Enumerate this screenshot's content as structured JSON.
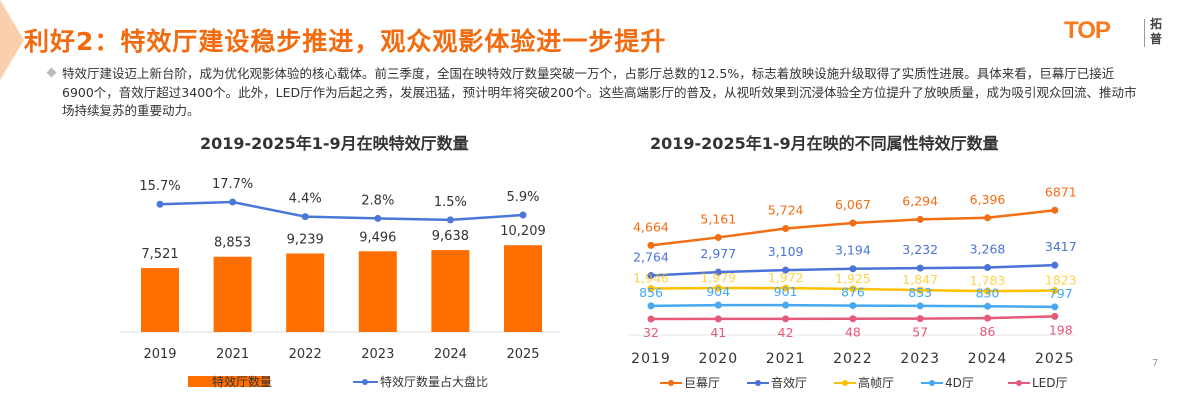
{
  "slide": {
    "title": "利好2：特效厅建设稳步推进，观众观影体验进一步提升",
    "logo_text": "TOP",
    "logo_cn": "拓普",
    "body": "特效厅建设迈上新台阶，成为优化观影体验的核心载体。前三季度，全国在映特效厅数量突破一万个，占影厅总数的12.5%，标志着放映设施升级取得了实质性进展。具体来看，巨幕厅已接近6900个，音效厅超过3400个。此外，LED厅作为后起之秀，发展迅猛，预计明年将突破200个。这些高端影厅的普及，从视听效果到沉浸体验全方位提升了放映质量，成为吸引观众回流、推动市场持续复苏的重要动力。",
    "page_number": "7",
    "accent": "#f26b0f"
  },
  "chart_data": [
    {
      "type": "bar+line",
      "title": "2019-2025年1-9月在映特效厅数量",
      "categories": [
        "2019",
        "2021",
        "2022",
        "2023",
        "2024",
        "2025"
      ],
      "series": [
        {
          "name": "特效厅数量",
          "type": "bar",
          "color": "#ff6f00",
          "values": [
            7521,
            8853,
            9239,
            9496,
            9638,
            10209
          ],
          "labels": [
            "7,521",
            "8,853",
            "9,239",
            "9,496",
            "9,638",
            "10,209"
          ]
        },
        {
          "name": "特效厅数量占大盘比",
          "type": "line",
          "color": "#4a78d8",
          "values": [
            15.7,
            17.7,
            4.4,
            2.8,
            1.5,
            5.9
          ],
          "labels": [
            "15.7%",
            "17.7%",
            "4.4%",
            "2.8%",
            "1.5%",
            "5.9%"
          ]
        }
      ],
      "legend": "bottom"
    },
    {
      "type": "line",
      "title": "2019-2025年1-9月在映的不同属性特效厅数量",
      "categories": [
        "2019",
        "2020",
        "2021",
        "2022",
        "2023",
        "2024",
        "2025"
      ],
      "series": [
        {
          "name": "巨幕厅",
          "color": "#f36d12",
          "values": [
            4664,
            5161,
            5724,
            6067,
            6294,
            6396,
            6871
          ],
          "labels": [
            "4,664",
            "5,161",
            "5,724",
            "6,067",
            "6,294",
            "6,396",
            "6871"
          ]
        },
        {
          "name": "音效厅",
          "color": "#4a72d8",
          "values": [
            2764,
            2977,
            3109,
            3194,
            3232,
            3268,
            3417
          ],
          "labels": [
            "2,764",
            "2,977",
            "3,109",
            "3,194",
            "3,232",
            "3,268",
            "3417"
          ]
        },
        {
          "name": "高帧厅",
          "color": "#ffc000",
          "values": [
            1946,
            1979,
            1972,
            1925,
            1847,
            1783,
            1823
          ],
          "labels": [
            "1,946",
            "1,979",
            "1,972",
            "1,925",
            "1,847",
            "1,783",
            "1823"
          ]
        },
        {
          "name": "4D厅",
          "color": "#45a8f0",
          "values": [
            856,
            904,
            901,
            876,
            853,
            830,
            797
          ],
          "labels": [
            "856",
            "904",
            "901",
            "876",
            "853",
            "830",
            "797"
          ]
        },
        {
          "name": "LED厅",
          "color": "#e55a78",
          "values": [
            32,
            41,
            42,
            48,
            57,
            86,
            198
          ],
          "labels": [
            "32",
            "41",
            "42",
            "48",
            "57",
            "86",
            "198"
          ]
        }
      ],
      "legend": "bottom"
    }
  ]
}
